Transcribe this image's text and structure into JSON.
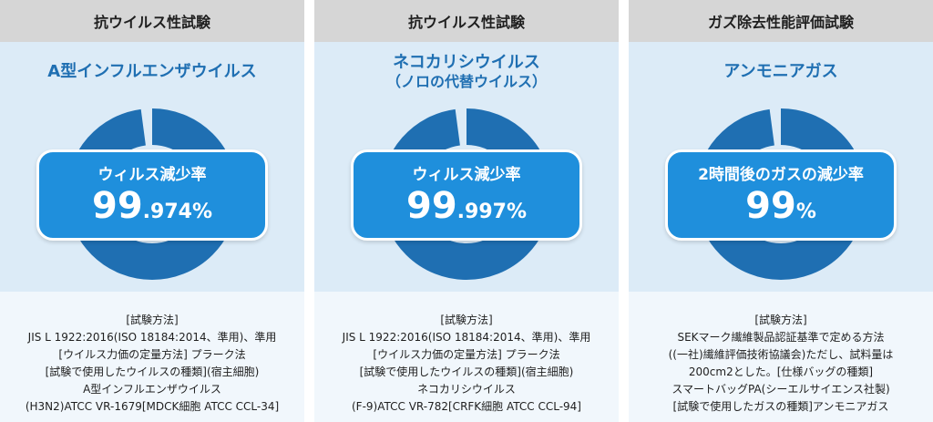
{
  "panels": [
    {
      "header": "抗ウイルス性試験",
      "title_line1": "A型インフルエンザウイルス",
      "title_line2": "",
      "badge_label": "ウィルス減少率",
      "value_big": "99",
      "value_small": ".974%",
      "method": [
        "[試験方法]",
        "JIS L 1922:2016(ISO 18184:2014、準用)、準用",
        "[ウイルス力価の定量方法] プラーク法",
        "[試験で使用したウイルスの種類](宿主細胞)",
        "A型インフルエンザウイルス",
        "(H3N2)ATCC VR-1679[MDCK細胞 ATCC CCL-34]"
      ]
    },
    {
      "header": "抗ウイルス性試験",
      "title_line1": "ネコカリシウイルス",
      "title_line2": "（ノロの代替ウイルス）",
      "badge_label": "ウィルス減少率",
      "value_big": "99",
      "value_small": ".997%",
      "method": [
        "[試験方法]",
        "JIS L 1922:2016(ISO 18184:2014、準用)、準用",
        "[ウイルス力価の定量方法] プラーク法",
        "[試験で使用したウイルスの種類](宿主細胞)",
        "ネコカリシウイルス",
        "(F-9)ATCC VR-782[CRFK細胞 ATCC CCL-94]"
      ]
    },
    {
      "header": "ガズ除去性能評価試験",
      "title_line1": "アンモニアガス",
      "title_line2": "",
      "badge_label": "2時間後のガスの減少率",
      "value_big": "99",
      "value_small": "%",
      "method": [
        "[試験方法]",
        "SEKマーク繊維製品認証基準で定める方法",
        "((一社)繊維評価技術協議会)ただし、試料量は",
        "200cm2とした。[仕様バッグの種類]",
        "スマートバッグPA(シーエルサイエンス社製)",
        "[試験で使用したガスの種類]アンモニアガス"
      ]
    }
  ],
  "colors": {
    "accent": "#1f8fdc",
    "ring": "#1f6fb2",
    "header_bg": "#d6d6d6"
  }
}
